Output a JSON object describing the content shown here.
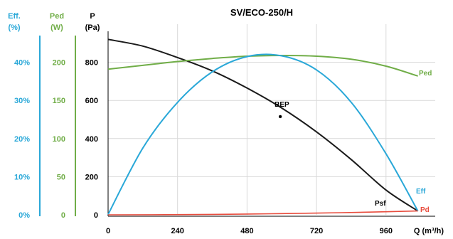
{
  "chart_data": {
    "type": "line",
    "title": "SV/ECO-250/H",
    "xlabel": "Q (m³/h)",
    "x_ticks": [
      0,
      240,
      480,
      720,
      960
    ],
    "xlim": [
      0,
      1130
    ],
    "grid": true,
    "axes": {
      "pressure": {
        "label_top": "P",
        "label_unit": "(Pa)",
        "ticks": [
          "0",
          "200",
          "400",
          "600",
          "800"
        ],
        "range": [
          0,
          1000
        ],
        "color": "#000000"
      },
      "power": {
        "label_top": "Ped",
        "label_unit": "(W)",
        "ticks": [
          "0",
          "50",
          "100",
          "150",
          "200"
        ],
        "range": [
          0,
          250
        ],
        "color": "#70ad47"
      },
      "efficiency": {
        "label_top": "Eff.",
        "label_unit": "(%)",
        "ticks": [
          "0%",
          "10%",
          "20%",
          "30%",
          "40%"
        ],
        "range": [
          0,
          50
        ],
        "color": "#2aa8d8"
      }
    },
    "series": [
      {
        "name": "Psf",
        "axis": "pressure",
        "color": "#1a1a1a",
        "x": [
          0,
          120,
          240,
          360,
          480,
          600,
          720,
          840,
          960,
          1070
        ],
        "y": [
          920,
          885,
          825,
          755,
          665,
          560,
          435,
          290,
          130,
          20
        ]
      },
      {
        "name": "Ped",
        "axis": "power",
        "color": "#70ad47",
        "x": [
          0,
          120,
          240,
          360,
          480,
          600,
          720,
          840,
          960,
          1070
        ],
        "y": [
          191,
          196,
          201,
          205,
          208,
          209,
          208,
          204,
          195,
          182
        ]
      },
      {
        "name": "Eff",
        "axis": "efficiency",
        "color": "#2aa8d8",
        "x": [
          0,
          120,
          240,
          360,
          480,
          600,
          720,
          840,
          960,
          1070
        ],
        "y": [
          0.1,
          17.5,
          29.5,
          37.5,
          41.5,
          41.7,
          38,
          29.5,
          16,
          1
        ]
      },
      {
        "name": "Pd",
        "axis": "pressure",
        "color": "#e84c3d",
        "x": [
          0,
          240,
          480,
          720,
          960,
          1070
        ],
        "y": [
          0,
          1,
          4,
          9,
          16,
          20
        ]
      }
    ],
    "annotations": [
      {
        "text": "BEP",
        "x": 580,
        "y": 530,
        "axis": "pressure"
      }
    ]
  }
}
